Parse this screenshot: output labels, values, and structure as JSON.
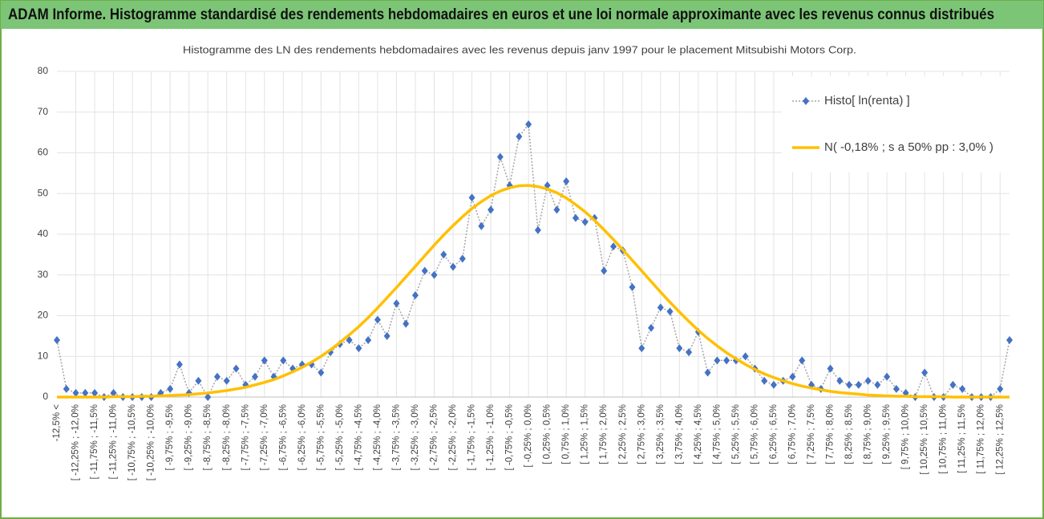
{
  "chart_data": {
    "type": "line",
    "title": "ADAM Informe. Histogramme standardisé des rendements hebdomadaires en euros et une loi normale approximante avec les revenus connus distribués",
    "subtitle": "Histogramme des LN des rendements hebdomadaires avec les revenus depuis janv 1997 pour le placement Mitsubishi Motors Corp.",
    "categories": [
      "-12,5% <",
      null,
      "[ -12,25% ; -12,0%",
      null,
      "[ -11,75% ; -11,5%",
      null,
      "[ -11,25% ; -11,0%",
      null,
      "[ -10,75% ; -10,5%",
      null,
      "[ -10,25% ; -10,0%",
      null,
      "[ -9,75% ; -9,5%",
      null,
      "[ -9,25% ; -9,0%",
      null,
      "[ -8,75% ; -8,5%",
      null,
      "[ -8,25% ; -8,0%",
      null,
      "[ -7,75% ; -7,5%",
      null,
      "[ -7,25% ; -7,0%",
      null,
      "[ -6,75% ; -6,5%",
      null,
      "[ -6,25% ; -6,0%",
      null,
      "[ -5,75% ; -5,5%",
      null,
      "[ -5,25% ; -5,0%",
      null,
      "[ -4,75% ; -4,5%",
      null,
      "[ -4,25% ; -4,0%",
      null,
      "[ -3,75% ; -3,5%",
      null,
      "[ -3,25% ; -3,0%",
      null,
      "[ -2,75% ; -2,5%",
      null,
      "[ -2,25% ; -2,0%",
      null,
      "[ -1,75% ; -1,5%",
      null,
      "[ -1,25% ; -1,0%",
      null,
      "[ -0,75% ; -0,5%",
      null,
      "[ -0,25% ; 0,0%",
      null,
      "[ 0,25% ; 0,5%",
      null,
      "[ 0,75% ; 1,0%",
      null,
      "[ 1,25% ; 1,5%",
      null,
      "[ 1,75% ; 2,0%",
      null,
      "[ 2,25% ; 2,5%",
      null,
      "[ 2,75% ; 3,0%",
      null,
      "[ 3,25% ; 3,5%",
      null,
      "[ 3,75% ; 4,0%",
      null,
      "[ 4,25% ; 4,5%",
      null,
      "[ 4,75% ; 5,0%",
      null,
      "[ 5,25% ; 5,5%",
      null,
      "[ 5,75% ; 6,0%",
      null,
      "[ 6,25% ; 6,5%",
      null,
      "[ 6,75% ; 7,0%",
      null,
      "[ 7,25% ; 7,5%",
      null,
      "[ 7,75% ; 8,0%",
      null,
      "[ 8,25% ; 8,5%",
      null,
      "[ 8,75% ; 9,0%",
      null,
      "[ 9,25% ; 9,5%",
      null,
      "[ 9,75% ; 10,0%",
      null,
      "[ 10,25% ; 10,5%",
      null,
      "[ 10,75% ; 11,0%",
      null,
      "[ 11,25% ; 11,5%",
      null,
      "[ 11,75% ; 12,0%",
      null,
      "[ 12,25% ; 12,5%",
      null
    ],
    "series": [
      {
        "name": "Histo[ ln(renta) ]",
        "color": "#4472c4",
        "line_color": "#a5a5a5",
        "line_dash": true,
        "marker": "diamond",
        "values": [
          14,
          2,
          1,
          1,
          1,
          0,
          1,
          0,
          0,
          0,
          0,
          1,
          2,
          8,
          1,
          4,
          0,
          5,
          4,
          7,
          3,
          5,
          9,
          5,
          9,
          7,
          8,
          8,
          6,
          11,
          13,
          14,
          12,
          14,
          19,
          15,
          23,
          18,
          25,
          31,
          30,
          35,
          32,
          34,
          49,
          42,
          46,
          59,
          52,
          64,
          67,
          41,
          52,
          46,
          53,
          44,
          43,
          44,
          31,
          37,
          36,
          27,
          12,
          17,
          22,
          21,
          12,
          11,
          16,
          6,
          9,
          9,
          9,
          10,
          7,
          4,
          3,
          4,
          5,
          9,
          3,
          2,
          7,
          4,
          3,
          3,
          4,
          3,
          5,
          2,
          1,
          0,
          6,
          0,
          0,
          3,
          2,
          0,
          0,
          0,
          2,
          14
        ]
      },
      {
        "name": "N( -0,18% ; s a 50% pp : 3,0% )",
        "color": "#ffc000",
        "line_width": 3.5,
        "values": [
          0,
          0,
          0,
          0,
          0,
          0,
          0.1,
          0.1,
          0.1,
          0.2,
          0.2,
          0.3,
          0.4,
          0.5,
          0.6,
          0.8,
          1.0,
          1.3,
          1.6,
          2.0,
          2.4,
          3.0,
          3.6,
          4.3,
          5.2,
          6.2,
          7.3,
          8.6,
          10.0,
          11.6,
          13.4,
          15.3,
          17.3,
          19.5,
          21.9,
          24.4,
          26.9,
          29.5,
          32.1,
          34.7,
          37.3,
          39.8,
          42.1,
          44.3,
          46.3,
          48.0,
          49.5,
          50.6,
          51.4,
          51.9,
          52.0,
          51.7,
          51.1,
          50.2,
          48.9,
          47.3,
          45.5,
          43.4,
          41.1,
          38.7,
          36.2,
          33.6,
          31.0,
          28.4,
          25.8,
          23.3,
          20.9,
          18.6,
          16.4,
          14.4,
          12.6,
          10.9,
          9.4,
          8.0,
          6.8,
          5.7,
          4.8,
          4.0,
          3.3,
          2.7,
          2.2,
          1.8,
          1.4,
          1.1,
          0.9,
          0.7,
          0.5,
          0.4,
          0.3,
          0.2,
          0.2,
          0.1,
          0.1,
          0.1,
          0.1,
          0,
          0,
          0,
          0,
          0,
          0,
          0
        ]
      }
    ],
    "ylim": [
      0,
      80
    ],
    "yticks": [
      0,
      10,
      20,
      30,
      40,
      50,
      60,
      70,
      80
    ],
    "grid": true,
    "legend": "top-right"
  }
}
